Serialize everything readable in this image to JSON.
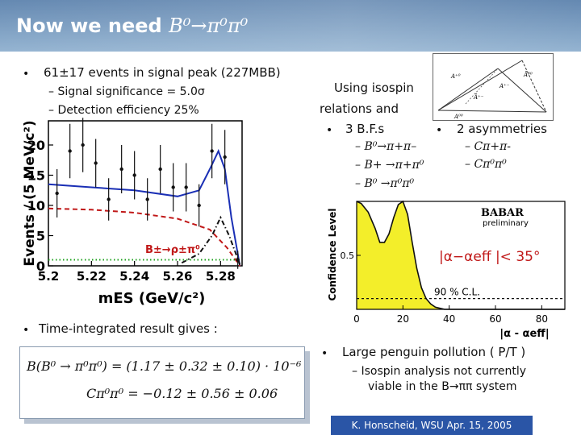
{
  "slide": {
    "title_prefix": "Now we need ",
    "title_formula": "B⁰→π⁰π⁰",
    "footer": "K. Honscheid, WSU Apr. 15, 2005"
  },
  "left": {
    "bullet1": "61±17 events in signal peak (227MBB)",
    "sub1": "–  Signal significance = 5.0σ",
    "sub2": "–  Detection efficiency 25%",
    "bullet2": "Time-integrated result gives :",
    "eq1": "B(B⁰ → π⁰π⁰) = (1.17 ± 0.32 ± 0.10) · 10⁻⁶",
    "eq2": "Cπ⁰π⁰ = −0.12 ± 0.56 ± 0.06"
  },
  "right": {
    "isospin_line1": "Using isospin",
    "isospin_line2": "relations and",
    "bf_bullet": "3 B.F.s",
    "bf_items": [
      "–  B⁰→π+π–",
      "–  B+ →π+π⁰",
      "–  B⁰ →π⁰π⁰"
    ],
    "asym_bullet": "2 asymmetries",
    "asym_items": [
      "–  Cπ+π-",
      "–  Cπ⁰π⁰"
    ],
    "penguin_bullet": "Large penguin pollution ( P/T )",
    "penguin_sub1": "–  Isospin analysis not currently",
    "penguin_sub2": "viable in the B→ππ system"
  },
  "chart_data": [
    {
      "type": "scatter",
      "ylabel": "Events / (5 MeV/c²)",
      "xlabel": "mES (GeV/c²)",
      "x_ticks": [
        "5.2",
        "5.22",
        "5.24",
        "5.26",
        "5.28"
      ],
      "y_ticks": [
        "0",
        "5",
        "10",
        "15",
        "20"
      ],
      "xlim": [
        5.2,
        5.29
      ],
      "ylim": [
        0,
        24
      ],
      "annotation": "B±→ρ±π⁰",
      "points": [
        {
          "x": 5.204,
          "y": 12,
          "err": 4
        },
        {
          "x": 5.21,
          "y": 19,
          "err": 4.5
        },
        {
          "x": 5.216,
          "y": 20,
          "err": 4.5
        },
        {
          "x": 5.222,
          "y": 17,
          "err": 4
        },
        {
          "x": 5.228,
          "y": 11,
          "err": 3.5
        },
        {
          "x": 5.234,
          "y": 16,
          "err": 4
        },
        {
          "x": 5.24,
          "y": 15,
          "err": 4
        },
        {
          "x": 5.246,
          "y": 11,
          "err": 3.5
        },
        {
          "x": 5.252,
          "y": 16,
          "err": 4
        },
        {
          "x": 5.258,
          "y": 13,
          "err": 4
        },
        {
          "x": 5.264,
          "y": 13,
          "err": 4
        },
        {
          "x": 5.27,
          "y": 10,
          "err": 3.5
        },
        {
          "x": 5.276,
          "y": 19,
          "err": 4.5
        },
        {
          "x": 5.282,
          "y": 18,
          "err": 4.5
        },
        {
          "x": 5.288,
          "y": 1,
          "err": 1.5
        }
      ],
      "series": [
        {
          "style": "solid",
          "color": "#1a2fb5",
          "x": [
            5.2,
            5.22,
            5.24,
            5.26,
            5.27,
            5.275,
            5.279,
            5.282,
            5.285,
            5.289
          ],
          "y": [
            13.5,
            13.0,
            12.5,
            11.5,
            12.5,
            16.0,
            19.0,
            16.0,
            8.0,
            0
          ]
        },
        {
          "style": "dashed",
          "color": "#c01818",
          "x": [
            5.2,
            5.22,
            5.24,
            5.26,
            5.275,
            5.283,
            5.289
          ],
          "y": [
            9.5,
            9.3,
            8.8,
            7.8,
            6.0,
            3.0,
            0
          ]
        },
        {
          "style": "dashdot",
          "color": "#111111",
          "x": [
            5.262,
            5.27,
            5.276,
            5.28,
            5.284,
            5.289
          ],
          "y": [
            0.5,
            2.0,
            5.0,
            8.0,
            5.0,
            0.2
          ]
        },
        {
          "style": "dotted",
          "color": "#1aa01a",
          "x": [
            5.2,
            5.289
          ],
          "y": [
            1.0,
            1.0
          ]
        }
      ]
    },
    {
      "type": "area",
      "ylabel": "Confidence Level",
      "xlabel": "|α - αeff|",
      "x_ticks": [
        "0",
        "20",
        "40",
        "60",
        "80"
      ],
      "y_ticks": [
        "0.5"
      ],
      "xlim": [
        0,
        90
      ],
      "ylim": [
        0,
        1
      ],
      "label_experiment": "BABAR",
      "label_status": "preliminary",
      "annotation": "|α−αeff |< 35°",
      "cl_label": "90 % C.L.",
      "cl_level": 0.1,
      "x": [
        0,
        2,
        5,
        8,
        10,
        12,
        14,
        16,
        18,
        20,
        22,
        24,
        26,
        28,
        30,
        32,
        34,
        36,
        38,
        40,
        90
      ],
      "y": [
        1.0,
        0.98,
        0.9,
        0.75,
        0.62,
        0.62,
        0.7,
        0.85,
        0.97,
        1.0,
        0.88,
        0.62,
        0.38,
        0.2,
        0.1,
        0.05,
        0.02,
        0.01,
        0.0,
        0.0,
        0.0
      ]
    }
  ],
  "diagram": {
    "labels": [
      "A⁺⁰",
      "A⁺⁻",
      "Ā⁺⁻",
      "Ā⁰⁰",
      "A⁰⁰"
    ]
  }
}
